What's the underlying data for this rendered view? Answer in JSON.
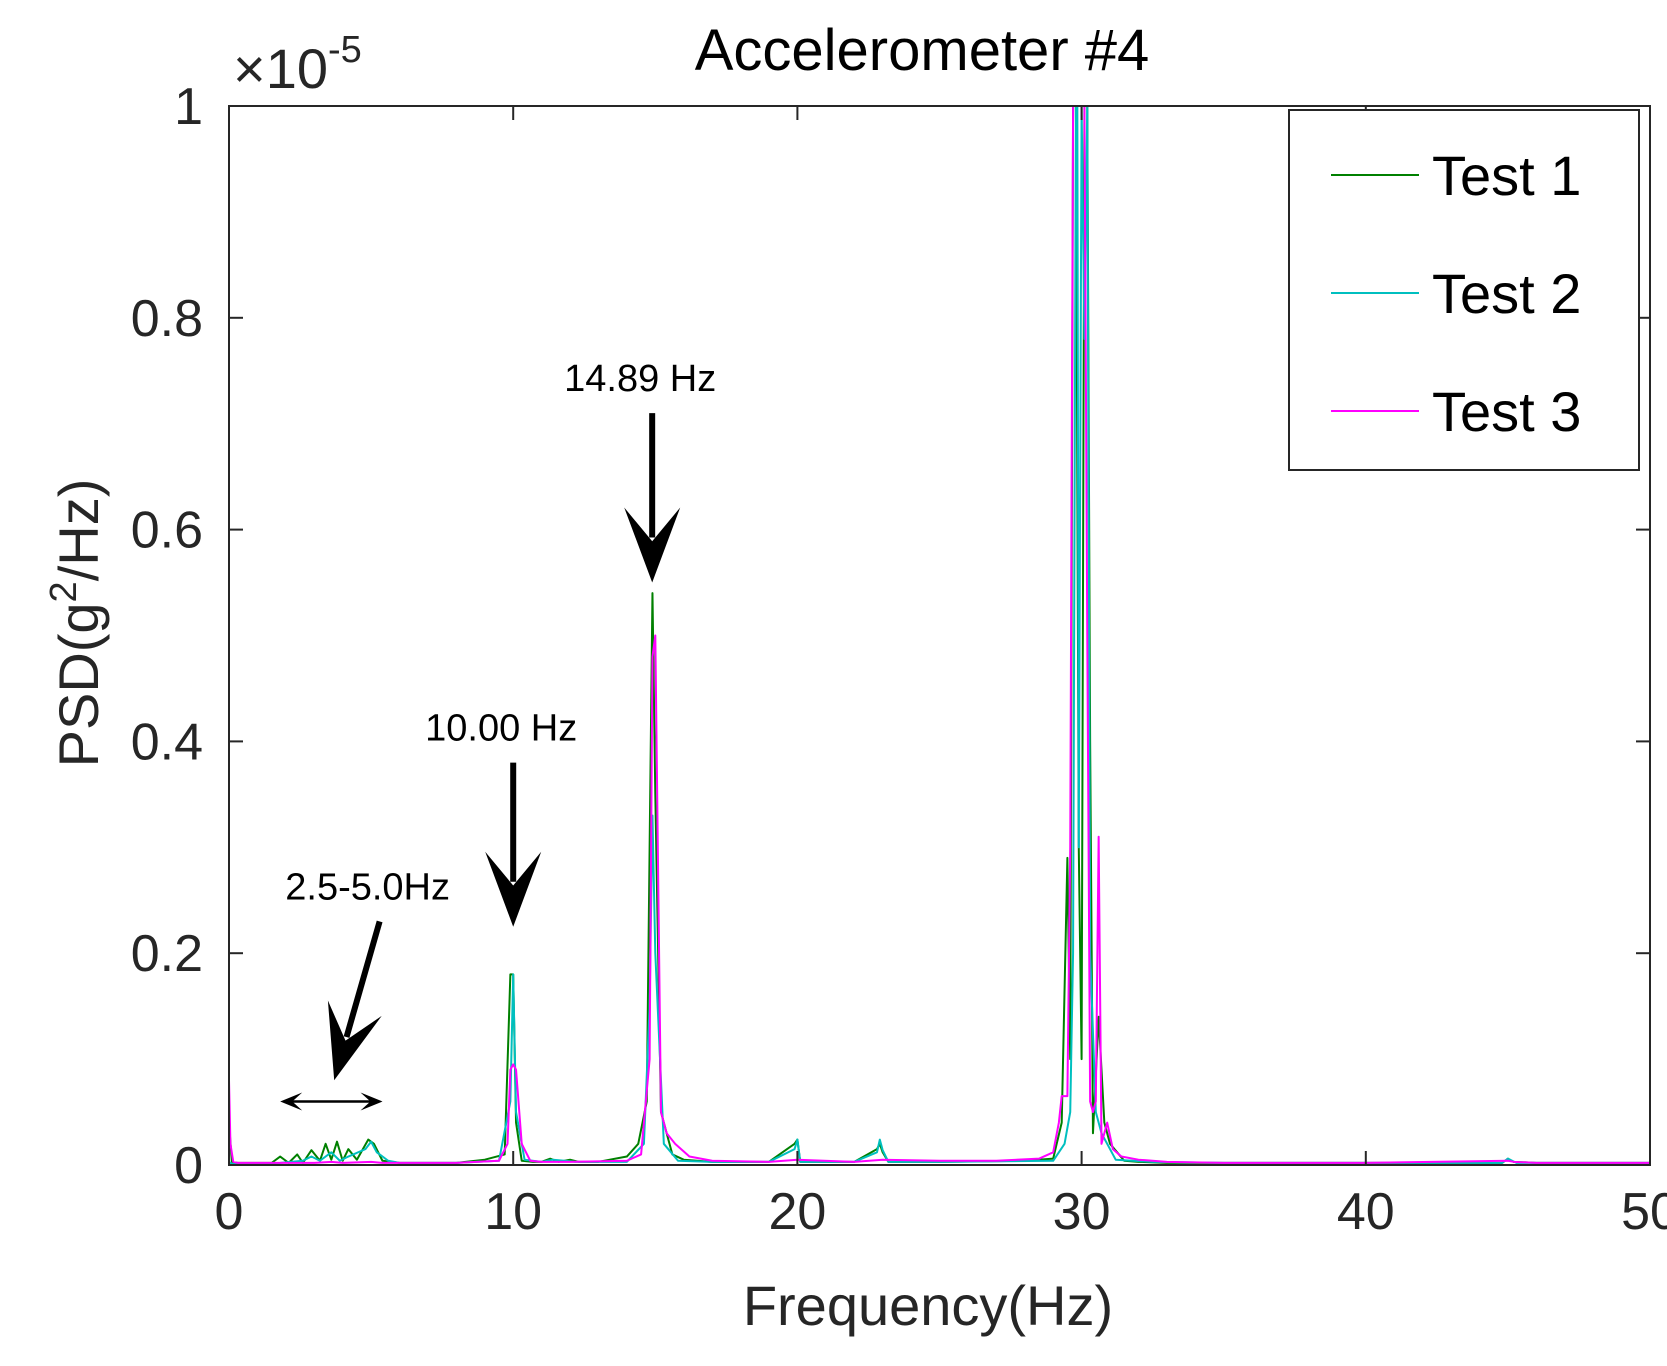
{
  "chart_data": {
    "type": "line",
    "title": "Accelerometer #4",
    "xlabel": "Frequency(Hz)",
    "ylabel_prefix": "PSD(g",
    "ylabel_superscript": "2",
    "ylabel_suffix": "/Hz)",
    "y_exponent_base": "×10",
    "y_exponent_power": "-5",
    "xlim": [
      0,
      50
    ],
    "ylim": [
      0,
      1
    ],
    "xticks": [
      0,
      10,
      20,
      30,
      40,
      50
    ],
    "xtick_labels": [
      "0",
      "10",
      "20",
      "30",
      "40",
      "50"
    ],
    "yticks": [
      0,
      0.2,
      0.4,
      0.6,
      0.8,
      1
    ],
    "ytick_labels": [
      "0",
      "0.2",
      "0.4",
      "0.6",
      "0.8",
      "1"
    ],
    "legend_position": "top-right",
    "series": [
      {
        "name": "Test 1",
        "color": "#008000",
        "x": [
          0,
          0.1,
          0.3,
          1.5,
          1.8,
          2.1,
          2.4,
          2.6,
          2.9,
          3.2,
          3.4,
          3.6,
          3.8,
          4.0,
          4.2,
          4.5,
          4.9,
          5.1,
          5.4,
          6.0,
          8.0,
          9.0,
          9.7,
          9.9,
          10.0,
          10.1,
          10.3,
          10.7,
          11.0,
          11.3,
          11.6,
          12.0,
          12.3,
          13.0,
          14.0,
          14.4,
          14.7,
          14.85,
          14.9,
          15.0,
          15.2,
          15.6,
          16.0,
          17.0,
          18.0,
          19.0,
          19.9,
          20.0,
          20.1,
          22.0,
          22.8,
          22.9,
          23.0,
          23.2,
          25.0,
          28.0,
          29.0,
          29.3,
          29.5,
          29.6,
          29.7,
          29.8,
          29.9,
          30.0,
          30.1,
          30.2,
          30.3,
          30.4,
          30.6,
          30.8,
          31.0,
          31.5,
          32.0,
          33.0,
          35.0,
          40.0,
          44.8,
          45.0,
          45.2,
          46.0,
          50.0
        ],
        "y": [
          0.04,
          0.003,
          0.002,
          0.002,
          0.008,
          0.002,
          0.01,
          0.002,
          0.014,
          0.004,
          0.02,
          0.005,
          0.022,
          0.004,
          0.015,
          0.005,
          0.024,
          0.02,
          0.004,
          0.002,
          0.002,
          0.005,
          0.01,
          0.18,
          0.18,
          0.04,
          0.004,
          0.003,
          0.003,
          0.006,
          0.003,
          0.005,
          0.003,
          0.003,
          0.008,
          0.02,
          0.06,
          0.42,
          0.54,
          0.35,
          0.05,
          0.01,
          0.005,
          0.003,
          0.003,
          0.003,
          0.02,
          0.024,
          0.003,
          0.003,
          0.015,
          0.02,
          0.012,
          0.003,
          0.003,
          0.004,
          0.006,
          0.04,
          0.29,
          0.1,
          1.0,
          1.0,
          0.3,
          0.1,
          1.0,
          1.0,
          0.4,
          0.03,
          0.14,
          0.04,
          0.02,
          0.004,
          0.003,
          0.002,
          0.002,
          0.002,
          0.002,
          0.006,
          0.003,
          0.002,
          0.002
        ]
      },
      {
        "name": "Test 2",
        "color": "#00BFBF",
        "x": [
          0,
          0.1,
          0.3,
          1.8,
          2.6,
          2.9,
          3.2,
          3.6,
          3.9,
          4.2,
          4.8,
          5.0,
          5.2,
          5.6,
          6.0,
          8.0,
          9.5,
          9.9,
          10.0,
          10.1,
          10.4,
          11.0,
          11.4,
          11.8,
          12.2,
          12.6,
          14.0,
          14.6,
          14.8,
          14.9,
          15.0,
          15.3,
          15.8,
          17.0,
          19.0,
          19.9,
          20.0,
          20.1,
          22.0,
          22.8,
          22.9,
          23.0,
          23.2,
          25.0,
          29.0,
          29.4,
          29.6,
          29.7,
          29.8,
          29.85,
          29.9,
          30.0,
          30.1,
          30.2,
          30.3,
          30.5,
          30.7,
          30.9,
          31.2,
          31.8,
          32.5,
          35.0,
          40.0,
          44.8,
          45.0,
          45.3,
          50.0
        ],
        "y": [
          0.003,
          0.001,
          0.001,
          0.002,
          0.004,
          0.008,
          0.004,
          0.012,
          0.004,
          0.008,
          0.015,
          0.022,
          0.012,
          0.004,
          0.002,
          0.002,
          0.004,
          0.06,
          0.18,
          0.05,
          0.005,
          0.003,
          0.005,
          0.004,
          0.003,
          0.003,
          0.003,
          0.02,
          0.15,
          0.33,
          0.2,
          0.02,
          0.004,
          0.003,
          0.003,
          0.015,
          0.024,
          0.003,
          0.003,
          0.012,
          0.024,
          0.014,
          0.003,
          0.003,
          0.004,
          0.02,
          0.05,
          0.2,
          1.0,
          1.0,
          0.3,
          1.0,
          0.78,
          1.0,
          0.2,
          0.05,
          0.03,
          0.02,
          0.005,
          0.004,
          0.003,
          0.002,
          0.002,
          0.002,
          0.006,
          0.002,
          0.002
        ]
      },
      {
        "name": "Test 3",
        "color": "#FF00FF",
        "x": [
          0,
          0.05,
          0.15,
          0.3,
          1.5,
          3.0,
          3.6,
          4.0,
          5.0,
          5.4,
          6.0,
          8.0,
          9.5,
          9.8,
          9.9,
          10.0,
          10.1,
          10.3,
          10.6,
          11.0,
          12.0,
          14.0,
          14.5,
          14.8,
          14.9,
          15.0,
          15.2,
          15.4,
          15.7,
          16.2,
          17.0,
          19.0,
          20.0,
          22.0,
          23.0,
          25.0,
          27.0,
          28.5,
          29.0,
          29.2,
          29.3,
          29.5,
          29.6,
          29.7,
          29.8,
          29.9,
          30.0,
          30.1,
          30.2,
          30.3,
          30.4,
          30.5,
          30.6,
          30.7,
          30.9,
          31.1,
          31.4,
          32.0,
          33.0,
          35.0,
          40.0,
          45.0,
          45.2,
          46.0,
          50.0
        ],
        "y": [
          0.08,
          0.02,
          0.003,
          0.002,
          0.002,
          0.002,
          0.003,
          0.002,
          0.003,
          0.002,
          0.002,
          0.002,
          0.004,
          0.02,
          0.09,
          0.095,
          0.09,
          0.02,
          0.004,
          0.003,
          0.003,
          0.004,
          0.01,
          0.1,
          0.48,
          0.5,
          0.05,
          0.03,
          0.02,
          0.008,
          0.004,
          0.003,
          0.005,
          0.003,
          0.005,
          0.004,
          0.004,
          0.006,
          0.012,
          0.04,
          0.065,
          0.065,
          0.3,
          1.0,
          1.0,
          1.0,
          1.0,
          1.0,
          0.5,
          0.06,
          0.05,
          0.06,
          0.31,
          0.02,
          0.04,
          0.015,
          0.008,
          0.005,
          0.003,
          0.002,
          0.002,
          0.004,
          0.003,
          0.002,
          0.002
        ]
      }
    ],
    "annotations": [
      {
        "text": "14.89 Hz",
        "x": 14.89,
        "arrow_from": [
          14.89,
          0.71
        ],
        "arrow_to": [
          14.89,
          0.55
        ],
        "arrowheads": "end"
      },
      {
        "text": "10.00 Hz",
        "x": 10.0,
        "arrow_from": [
          10.0,
          0.38
        ],
        "arrow_to": [
          10.0,
          0.225
        ],
        "arrowheads": "end"
      },
      {
        "text": "2.5-5.0Hz",
        "x": 3.7,
        "arrow_from": [
          5.3,
          0.23
        ],
        "arrow_to": [
          3.7,
          0.08
        ],
        "arrowheads": "end"
      },
      {
        "text": "",
        "range": [
          1.8,
          5.4
        ],
        "y": 0.06,
        "arrowheads": "both"
      }
    ]
  }
}
